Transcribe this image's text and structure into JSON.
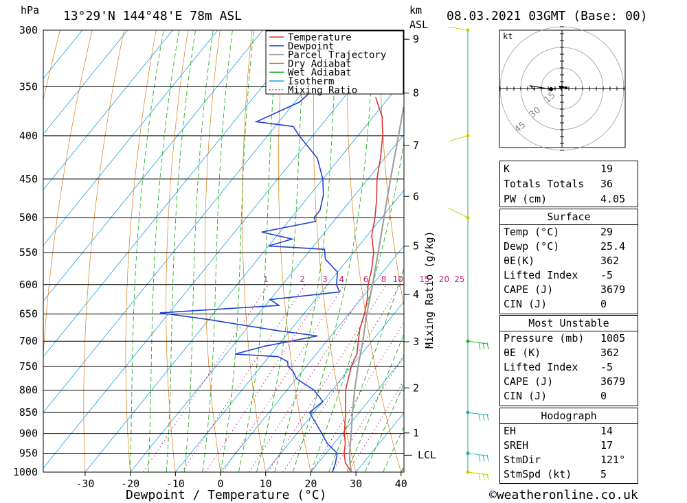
{
  "header": {
    "pressure_unit": "hPa",
    "location": "13°29'N  144°48'E  78m  ASL",
    "km_label": "km",
    "asl_label": "ASL",
    "datetime": "08.03.2021  03GMT  (Base: 00)"
  },
  "legend": [
    {
      "name": "Temperature",
      "color": "#e03030"
    },
    {
      "name": "Dewpoint",
      "color": "#2040d0"
    },
    {
      "name": "Parcel Trajectory",
      "color": "#a0a0a0"
    },
    {
      "name": "Dry Adiabat",
      "color": "#e07a10"
    },
    {
      "name": "Wet Adiabat",
      "color": "#20b020"
    },
    {
      "name": "Isotherm",
      "color": "#1aa0e0"
    },
    {
      "name": "Mixing Ratio",
      "color": "#c02080"
    }
  ],
  "chart_data": {
    "type": "line",
    "subtype": "skew-T log-P",
    "xlabel": "Dewpoint / Temperature (°C)",
    "ylabel": "hPa",
    "secondary_ylabel": "Mixing Ratio (g/kg)",
    "x_ticks": [
      -30,
      -20,
      -10,
      0,
      10,
      20,
      30,
      40
    ],
    "pressure_levels": [
      300,
      350,
      400,
      450,
      500,
      550,
      600,
      650,
      700,
      750,
      800,
      850,
      900,
      950,
      1000
    ],
    "km_ticks": [
      "1",
      "2",
      "3",
      "4",
      "5",
      "6",
      "7",
      "8",
      "9"
    ],
    "lcl_label": "LCL",
    "mixing_ratio_labels": [
      "1",
      "2",
      "3",
      "4",
      "6",
      "8",
      "10",
      "15",
      "20",
      "25"
    ],
    "series": [
      {
        "name": "Temperature",
        "color": "#e03030",
        "points": [
          [
            1000,
            29
          ],
          [
            975,
            26
          ],
          [
            950,
            24
          ],
          [
            925,
            22.5
          ],
          [
            900,
            20.5
          ],
          [
            850,
            17
          ],
          [
            800,
            13
          ],
          [
            775,
            11.5
          ],
          [
            750,
            10
          ],
          [
            725,
            9
          ],
          [
            700,
            7
          ],
          [
            675,
            5
          ],
          [
            650,
            3.5
          ],
          [
            625,
            1.5
          ],
          [
            600,
            -1
          ],
          [
            575,
            -3
          ],
          [
            550,
            -5.5
          ],
          [
            525,
            -9
          ],
          [
            500,
            -11.5
          ],
          [
            475,
            -14.5
          ],
          [
            450,
            -18
          ],
          [
            425,
            -21
          ],
          [
            400,
            -24.5
          ],
          [
            380,
            -28
          ],
          [
            360,
            -33
          ]
        ]
      },
      {
        "name": "Dewpoint",
        "color": "#2040d0",
        "points": [
          [
            1000,
            24.8
          ],
          [
            975,
            23.8
          ],
          [
            950,
            22.5
          ],
          [
            925,
            18.5
          ],
          [
            900,
            15.5
          ],
          [
            850,
            9
          ],
          [
            825,
            10
          ],
          [
            800,
            6
          ],
          [
            775,
            0
          ],
          [
            760,
            -2
          ],
          [
            750,
            -4
          ],
          [
            740,
            -5
          ],
          [
            730,
            -8
          ],
          [
            725,
            -18
          ],
          [
            710,
            -13
          ],
          [
            690,
            -3
          ],
          [
            680,
            -13
          ],
          [
            660,
            -30
          ],
          [
            648,
            -42
          ],
          [
            635,
            -17
          ],
          [
            625,
            -20
          ],
          [
            612,
            -6
          ],
          [
            600,
            -8
          ],
          [
            580,
            -10
          ],
          [
            560,
            -15
          ],
          [
            545,
            -17
          ],
          [
            540,
            -30
          ],
          [
            530,
            -26
          ],
          [
            520,
            -34
          ],
          [
            505,
            -24
          ],
          [
            500,
            -25
          ],
          [
            490,
            -25
          ],
          [
            470,
            -27
          ],
          [
            450,
            -30
          ],
          [
            425,
            -35
          ],
          [
            400,
            -43
          ],
          [
            390,
            -46
          ],
          [
            385,
            -55
          ],
          [
            365,
            -49
          ],
          [
            350,
            -48
          ],
          [
            340,
            -49
          ],
          [
            330,
            -52
          ],
          [
            320,
            -52
          ],
          [
            315,
            -58
          ],
          [
            300,
            -60
          ]
        ]
      },
      {
        "name": "Parcel Trajectory",
        "color": "#a0a0a0",
        "points": [
          [
            1000,
            29
          ],
          [
            975,
            27
          ],
          [
            950,
            25.2
          ],
          [
            900,
            22
          ],
          [
            850,
            18.5
          ],
          [
            800,
            15
          ],
          [
            750,
            11.5
          ],
          [
            700,
            8
          ],
          [
            650,
            4
          ],
          [
            600,
            0
          ],
          [
            550,
            -4.5
          ],
          [
            500,
            -9.5
          ],
          [
            450,
            -15
          ],
          [
            400,
            -21
          ],
          [
            370,
            -25
          ]
        ]
      }
    ]
  },
  "wind_barbs": [
    {
      "pressure": 1000,
      "color": "#c8d000"
    },
    {
      "pressure": 950,
      "color": "#20b0b0"
    },
    {
      "pressure": 850,
      "color": "#20b0b0"
    },
    {
      "pressure": 700,
      "color": "#20b020"
    },
    {
      "pressure": 500,
      "color": "#c8d000"
    },
    {
      "pressure": 400,
      "color": "#c8d000"
    },
    {
      "pressure": 300,
      "color": "#c8d000"
    }
  ],
  "hodograph": {
    "unit_label": "kt",
    "ring_labels": [
      "15",
      "30",
      "45"
    ]
  },
  "indices": {
    "general": [
      {
        "label": "K",
        "value": "19"
      },
      {
        "label": "Totals Totals",
        "value": "36"
      },
      {
        "label": "PW (cm)",
        "value": "4.05"
      }
    ],
    "surface": {
      "title": "Surface",
      "rows": [
        {
          "label": "Temp (°C)",
          "value": "29"
        },
        {
          "label": "Dewp (°C)",
          "value": "25.4"
        },
        {
          "label": "θE(K)",
          "value": "362"
        },
        {
          "label": "Lifted Index",
          "value": "-5"
        },
        {
          "label": "CAPE (J)",
          "value": "3679"
        },
        {
          "label": "CIN (J)",
          "value": "0"
        }
      ]
    },
    "most_unstable": {
      "title": "Most Unstable",
      "rows": [
        {
          "label": "Pressure (mb)",
          "value": "1005"
        },
        {
          "label": "θE (K)",
          "value": "362"
        },
        {
          "label": "Lifted Index",
          "value": "-5"
        },
        {
          "label": "CAPE (J)",
          "value": "3679"
        },
        {
          "label": "CIN (J)",
          "value": "0"
        }
      ]
    },
    "hodograph": {
      "title": "Hodograph",
      "rows": [
        {
          "label": "EH",
          "value": "14"
        },
        {
          "label": "SREH",
          "value": "17"
        },
        {
          "label": "StmDir",
          "value": "121°"
        },
        {
          "label": "StmSpd (kt)",
          "value": "5"
        }
      ]
    }
  },
  "footer": {
    "copyright_symbol": "©",
    "site": "weatheronline.co.uk"
  }
}
